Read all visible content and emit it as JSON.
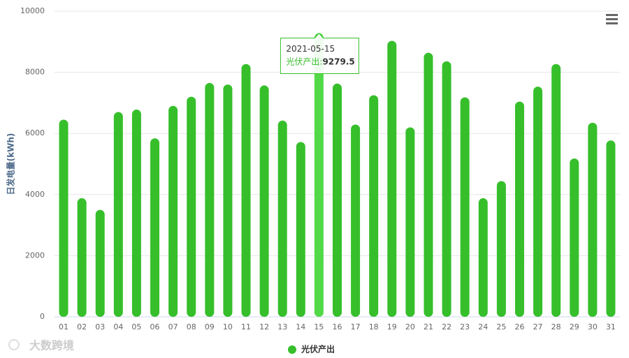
{
  "chart_data": {
    "type": "bar",
    "y_axis_label": "日发电量(kWh)",
    "categories": [
      "01",
      "02",
      "03",
      "04",
      "05",
      "06",
      "07",
      "08",
      "09",
      "10",
      "11",
      "12",
      "13",
      "14",
      "15",
      "16",
      "17",
      "18",
      "19",
      "20",
      "21",
      "22",
      "23",
      "24",
      "25",
      "26",
      "27",
      "28",
      "29",
      "30",
      "31"
    ],
    "series": [
      {
        "name": "光伏产出",
        "color": "#36bf2b",
        "values": [
          6450,
          3880,
          3500,
          6700,
          6780,
          5840,
          6900,
          7200,
          7650,
          7600,
          8270,
          7570,
          6420,
          5720,
          9279.5,
          7630,
          6290,
          7250,
          9030,
          6200,
          8640,
          8360,
          7180,
          3880,
          4440,
          7040,
          7530,
          8270,
          5180,
          6350,
          5770
        ]
      }
    ],
    "ylim": [
      0,
      10000
    ],
    "yticks": [
      0,
      2000,
      4000,
      6000,
      8000,
      10000
    ],
    "grid": true,
    "tooltip": {
      "index": 14,
      "title": "2021-05-15",
      "series_label": "光伏产出:",
      "highlight_color": "#52d948"
    },
    "legend": "bottom",
    "watermark": "大数跨境"
  }
}
